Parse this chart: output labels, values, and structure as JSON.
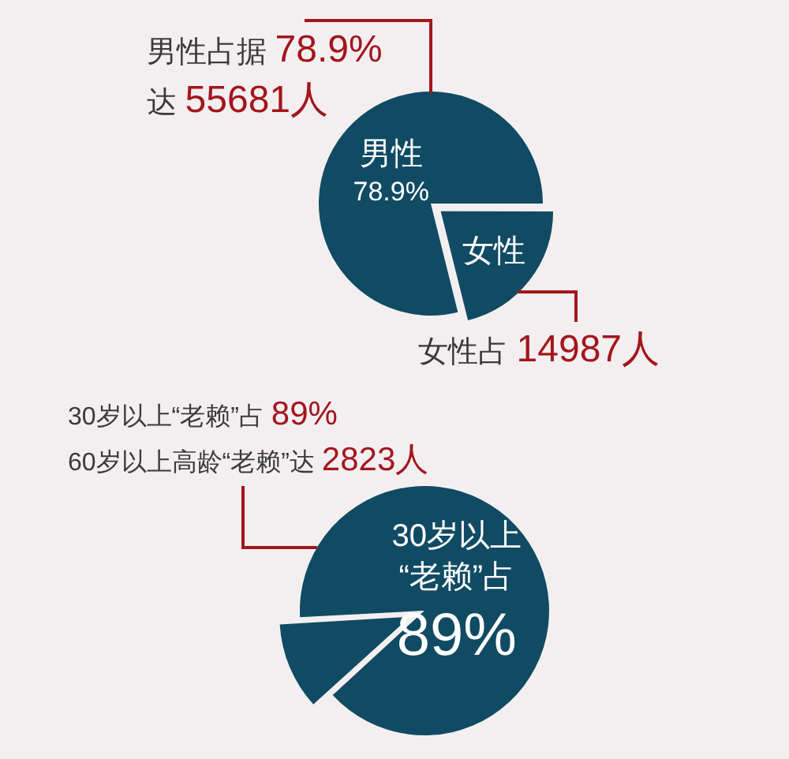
{
  "chart_data": [
    {
      "type": "pie",
      "categories": [
        "男性",
        "女性"
      ],
      "values": [
        78.9,
        21.1
      ],
      "colors": [
        "#104b63",
        "#104b63"
      ],
      "value_labels": [
        "78.9%",
        null
      ],
      "annotations": [
        "男性占据 78.9%",
        "达 55681人",
        "女性占 14987人"
      ]
    },
    {
      "type": "pie",
      "categories": [
        "30岁以上“老赖”占",
        null
      ],
      "values": [
        89,
        11
      ],
      "colors": [
        "#104b63",
        "#104b63"
      ],
      "value_labels": [
        "89%",
        null
      ],
      "annotations": [
        "30岁以上“老赖”占 89%",
        "60岁以上高龄“老赖”达 2823人"
      ]
    }
  ]
}
